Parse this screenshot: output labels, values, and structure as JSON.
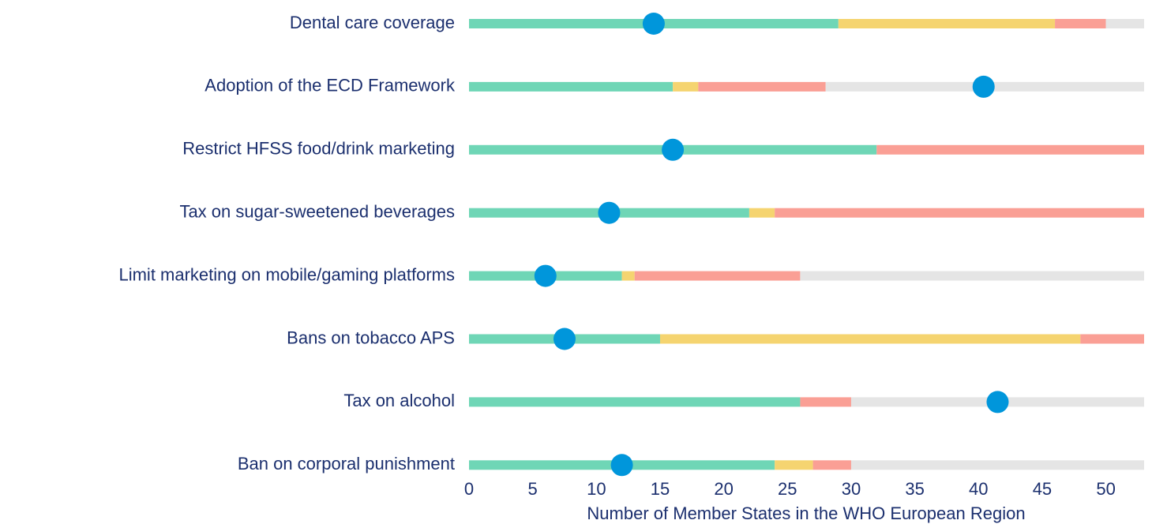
{
  "chart_data": {
    "type": "bar",
    "orientation": "horizontal",
    "stacked": true,
    "x_label": "Number of Member States in the WHO European Region",
    "categories": [
      "Dental care coverage",
      "Adoption of the ECD Framework",
      "Restrict HFSS food/drink marketing",
      "Tax on sugar-sweetened beverages",
      "Limit marketing on mobile/gaming platforms",
      "Bans on tobacco APS",
      "Tax on alcohol",
      "Ban on corporal punishment"
    ],
    "series": [
      {
        "color": "#6fd6b6",
        "values": [
          29,
          16,
          32,
          22,
          12,
          15,
          26,
          24
        ]
      },
      {
        "color": "#f5d470",
        "values": [
          17,
          2,
          0,
          2,
          1,
          33,
          0,
          3
        ]
      },
      {
        "color": "#fa9f95",
        "values": [
          4,
          10,
          21,
          29,
          13,
          5,
          4,
          3
        ]
      },
      {
        "color": "#e5e5e5",
        "values": [
          3,
          25,
          0,
          0,
          27,
          0,
          23,
          23
        ]
      }
    ],
    "markers": {
      "color": "#0096db",
      "values": [
        14.5,
        40.4,
        16,
        11,
        6,
        7.5,
        41.5,
        12
      ]
    },
    "xlim": [
      0,
      53
    ],
    "xticks": [
      0,
      5,
      10,
      15,
      20,
      25,
      30,
      35,
      40,
      45,
      50
    ]
  }
}
